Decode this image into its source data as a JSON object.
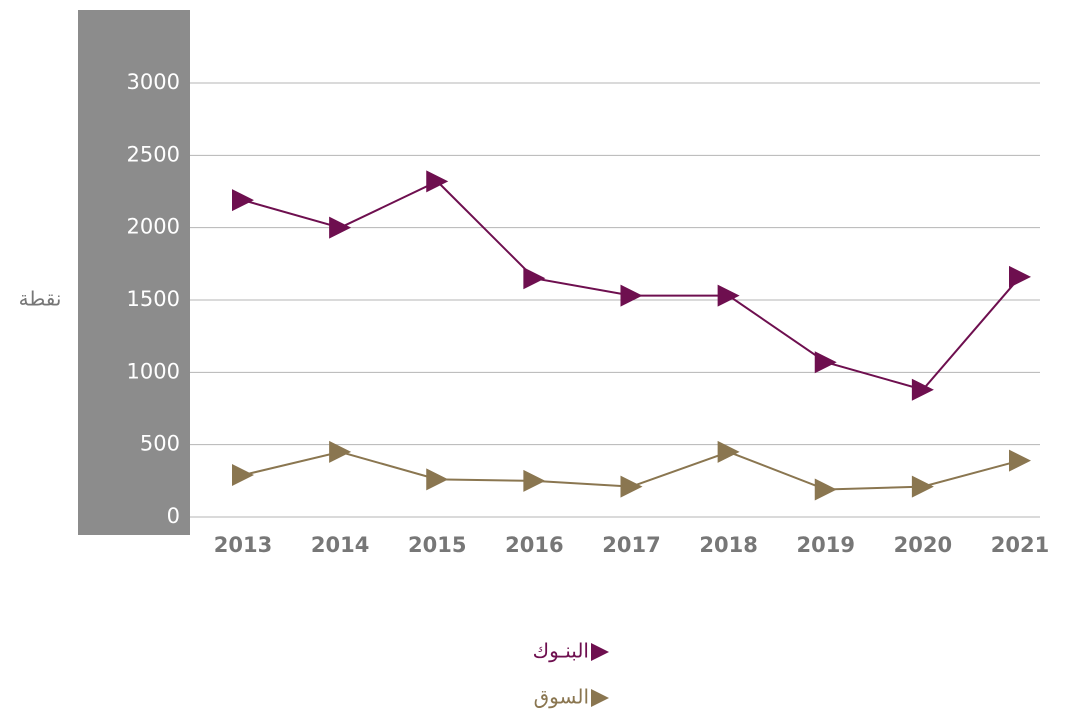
{
  "chart_data": {
    "type": "line",
    "y_label": "نقطة",
    "categories": [
      "2013",
      "2014",
      "2015",
      "2016",
      "2017",
      "2018",
      "2019",
      "2020",
      "2021"
    ],
    "series": [
      {
        "name": "البنـوك",
        "color": "#6e0f4f",
        "values": [
          2190,
          2000,
          2320,
          1650,
          1530,
          1530,
          1070,
          880,
          1660
        ]
      },
      {
        "name": "السوق",
        "color": "#8a7650",
        "values": [
          290,
          450,
          260,
          250,
          210,
          450,
          190,
          210,
          390
        ]
      }
    ],
    "ylim": [
      0,
      3000
    ],
    "yticks": [
      0,
      500,
      1000,
      1500,
      2000,
      2500,
      3000
    ],
    "grid": true
  }
}
